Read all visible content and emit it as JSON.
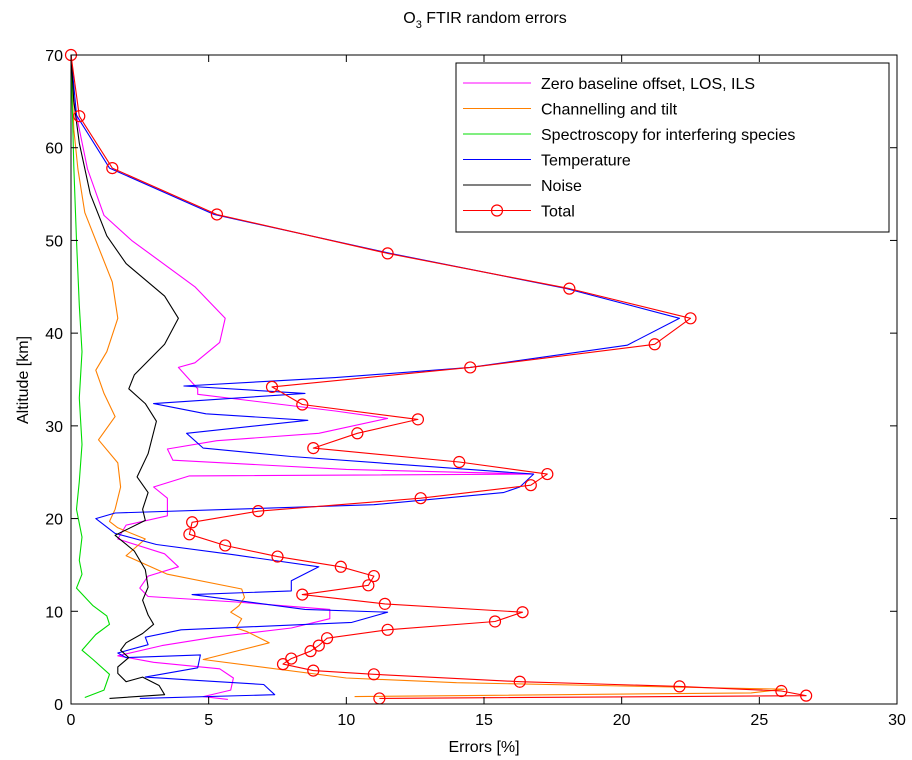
{
  "chart_data": {
    "type": "line",
    "title": "O",
    "title_subscript": "3",
    "title_rest": " FTIR random errors",
    "xlabel": "Errors [%]",
    "ylabel": "Altitude [km]",
    "xlim": [
      0,
      30
    ],
    "ylim": [
      0,
      70
    ],
    "xticks": [
      0,
      5,
      10,
      15,
      20,
      25,
      30
    ],
    "yticks": [
      0,
      10,
      20,
      30,
      40,
      50,
      60,
      70
    ],
    "grid": false,
    "legend_position": "top-right",
    "series": [
      {
        "name": "Zero baseline offset, LOS, ILS",
        "color": "#ff00ff",
        "marker": "none",
        "points": [
          [
            5.7,
            0.5
          ],
          [
            4.8,
            0.8
          ],
          [
            5.8,
            1.5
          ],
          [
            5.9,
            2.8
          ],
          [
            5.4,
            3.8
          ],
          [
            3.0,
            4.5
          ],
          [
            1.7,
            5.2
          ],
          [
            3.3,
            6.3
          ],
          [
            5.2,
            7.2
          ],
          [
            8.0,
            8.2
          ],
          [
            9.4,
            9.2
          ],
          [
            9.4,
            10.2
          ],
          [
            6.0,
            11.0
          ],
          [
            2.8,
            11.6
          ],
          [
            2.5,
            12.5
          ],
          [
            2.8,
            13.8
          ],
          [
            3.9,
            14.8
          ],
          [
            3.4,
            16.2
          ],
          [
            1.7,
            17.8
          ],
          [
            2.0,
            19.3
          ],
          [
            3.5,
            20.3
          ],
          [
            3.5,
            22.2
          ],
          [
            3.0,
            23.4
          ],
          [
            4.3,
            24.6
          ],
          [
            16.8,
            24.8
          ],
          [
            10.0,
            25.3
          ],
          [
            3.7,
            26.3
          ],
          [
            3.5,
            27.5
          ],
          [
            5.3,
            28.4
          ],
          [
            9.0,
            29.2
          ],
          [
            11.5,
            30.8
          ],
          [
            9.6,
            31.6
          ],
          [
            4.6,
            33.4
          ],
          [
            4.6,
            34.0
          ],
          [
            3.9,
            36.3
          ],
          [
            4.5,
            36.8
          ],
          [
            5.4,
            39.0
          ],
          [
            5.6,
            41.6
          ],
          [
            4.5,
            45.0
          ],
          [
            2.2,
            50.0
          ],
          [
            1.2,
            52.7
          ],
          [
            0.6,
            57.7
          ],
          [
            0.3,
            62.0
          ],
          [
            0.1,
            65.0
          ],
          [
            0.0,
            70.0
          ]
        ]
      },
      {
        "name": "Channelling and tilt",
        "color": "#ff8000",
        "marker": "none",
        "points": [
          [
            10.3,
            0.8
          ],
          [
            24.7,
            1.2
          ],
          [
            25.9,
            1.6
          ],
          [
            14.0,
            2.3
          ],
          [
            10.0,
            2.8
          ],
          [
            4.8,
            4.8
          ],
          [
            7.2,
            6.6
          ],
          [
            6.4,
            7.8
          ],
          [
            6.0,
            8.2
          ],
          [
            6.2,
            9.2
          ],
          [
            5.8,
            9.9
          ],
          [
            6.1,
            10.6
          ],
          [
            6.3,
            11.5
          ],
          [
            6.2,
            12.4
          ],
          [
            3.5,
            14.0
          ],
          [
            2.0,
            16.0
          ],
          [
            2.7,
            17.8
          ],
          [
            1.7,
            19.0
          ],
          [
            1.4,
            19.7
          ],
          [
            1.6,
            21.0
          ],
          [
            1.8,
            23.4
          ],
          [
            1.7,
            26.0
          ],
          [
            1.0,
            28.5
          ],
          [
            1.6,
            31.0
          ],
          [
            1.2,
            33.5
          ],
          [
            0.9,
            36.0
          ],
          [
            1.3,
            38.0
          ],
          [
            1.7,
            41.6
          ],
          [
            1.5,
            45.5
          ],
          [
            0.9,
            50.0
          ],
          [
            0.5,
            53.0
          ],
          [
            0.25,
            57.7
          ],
          [
            0.1,
            62.0
          ],
          [
            0.0,
            70.0
          ]
        ]
      },
      {
        "name": "Spectroscopy for interfering species",
        "color": "#00dd00",
        "marker": "none",
        "points": [
          [
            0.5,
            0.7
          ],
          [
            1.2,
            1.5
          ],
          [
            1.4,
            3.2
          ],
          [
            0.8,
            4.8
          ],
          [
            0.4,
            5.8
          ],
          [
            0.9,
            7.5
          ],
          [
            1.4,
            8.6
          ],
          [
            1.3,
            9.5
          ],
          [
            0.8,
            10.6
          ],
          [
            0.2,
            12.5
          ],
          [
            0.4,
            14.0
          ],
          [
            0.3,
            15.5
          ],
          [
            0.4,
            18.0
          ],
          [
            0.2,
            21.0
          ],
          [
            0.3,
            24.0
          ],
          [
            0.4,
            28.0
          ],
          [
            0.3,
            33.0
          ],
          [
            0.4,
            38.0
          ],
          [
            0.3,
            43.0
          ],
          [
            0.2,
            50.0
          ],
          [
            0.1,
            58.0
          ],
          [
            0.0,
            70.0
          ]
        ]
      },
      {
        "name": "Temperature",
        "color": "#0000ff",
        "marker": "none",
        "points": [
          [
            2.5,
            0.6
          ],
          [
            7.4,
            1.0
          ],
          [
            7.0,
            2.1
          ],
          [
            4.3,
            2.6
          ],
          [
            2.7,
            2.9
          ],
          [
            4.6,
            3.9
          ],
          [
            4.7,
            5.3
          ],
          [
            2.0,
            5.0
          ],
          [
            1.7,
            5.5
          ],
          [
            2.8,
            6.4
          ],
          [
            2.7,
            7.2
          ],
          [
            4.0,
            8.0
          ],
          [
            10.2,
            8.8
          ],
          [
            11.5,
            9.9
          ],
          [
            8.5,
            10.2
          ],
          [
            4.4,
            11.8
          ],
          [
            8.0,
            12.2
          ],
          [
            8.0,
            13.3
          ],
          [
            9.0,
            14.8
          ],
          [
            5.9,
            16.1
          ],
          [
            3.1,
            17.2
          ],
          [
            1.6,
            18.4
          ],
          [
            0.9,
            20.0
          ],
          [
            1.6,
            20.6
          ],
          [
            11.0,
            21.5
          ],
          [
            15.7,
            22.8
          ],
          [
            16.3,
            23.4
          ],
          [
            16.8,
            24.8
          ],
          [
            8.0,
            26.7
          ],
          [
            4.8,
            27.6
          ],
          [
            4.2,
            29.2
          ],
          [
            8.6,
            30.6
          ],
          [
            4.9,
            31.3
          ],
          [
            3.0,
            32.4
          ],
          [
            8.5,
            33.5
          ],
          [
            4.1,
            34.3
          ],
          [
            9.6,
            35.2
          ],
          [
            14.5,
            36.3
          ],
          [
            20.2,
            38.7
          ],
          [
            22.1,
            41.6
          ],
          [
            18.0,
            44.8
          ],
          [
            11.6,
            48.6
          ],
          [
            5.2,
            52.8
          ],
          [
            1.4,
            57.8
          ],
          [
            0.2,
            63.5
          ],
          [
            0.0,
            70.0
          ]
        ]
      },
      {
        "name": "Noise",
        "color": "#000000",
        "marker": "none",
        "points": [
          [
            1.4,
            0.6
          ],
          [
            3.4,
            1.0
          ],
          [
            3.2,
            2.0
          ],
          [
            2.6,
            2.9
          ],
          [
            2.0,
            2.4
          ],
          [
            1.7,
            3.3
          ],
          [
            1.7,
            4.0
          ],
          [
            2.1,
            5.0
          ],
          [
            1.8,
            5.8
          ],
          [
            2.0,
            6.6
          ],
          [
            2.6,
            7.6
          ],
          [
            3.0,
            8.6
          ],
          [
            2.8,
            9.6
          ],
          [
            2.6,
            11.2
          ],
          [
            2.8,
            12.6
          ],
          [
            2.7,
            14.5
          ],
          [
            2.3,
            16.5
          ],
          [
            1.6,
            18.2
          ],
          [
            2.7,
            19.8
          ],
          [
            2.6,
            21.0
          ],
          [
            2.8,
            22.8
          ],
          [
            2.4,
            24.5
          ],
          [
            2.8,
            27.0
          ],
          [
            3.1,
            30.5
          ],
          [
            2.7,
            32.4
          ],
          [
            2.1,
            34.0
          ],
          [
            2.3,
            35.5
          ],
          [
            3.4,
            38.8
          ],
          [
            3.9,
            41.6
          ],
          [
            3.4,
            44.0
          ],
          [
            2.0,
            47.5
          ],
          [
            1.3,
            50.5
          ],
          [
            0.7,
            55.0
          ],
          [
            0.3,
            60.5
          ],
          [
            0.1,
            65.0
          ],
          [
            0.0,
            70.0
          ]
        ]
      },
      {
        "name": "Total",
        "color": "#ff0000",
        "marker": "circle",
        "points": [
          [
            11.2,
            0.6
          ],
          [
            26.7,
            0.9
          ],
          [
            25.8,
            1.4
          ],
          [
            22.1,
            1.9
          ],
          [
            16.3,
            2.4
          ],
          [
            11.0,
            3.2
          ],
          [
            8.8,
            3.6
          ],
          [
            7.7,
            4.3
          ],
          [
            8.0,
            4.9
          ],
          [
            8.7,
            5.7
          ],
          [
            9.0,
            6.3
          ],
          [
            9.3,
            7.1
          ],
          [
            11.5,
            8.0
          ],
          [
            15.4,
            8.9
          ],
          [
            16.4,
            9.9
          ],
          [
            11.4,
            10.8
          ],
          [
            8.4,
            11.8
          ],
          [
            10.8,
            12.8
          ],
          [
            11.0,
            13.8
          ],
          [
            9.8,
            14.8
          ],
          [
            7.5,
            15.9
          ],
          [
            5.6,
            17.1
          ],
          [
            4.3,
            18.3
          ],
          [
            4.4,
            19.6
          ],
          [
            6.8,
            20.8
          ],
          [
            12.7,
            22.2
          ],
          [
            16.7,
            23.6
          ],
          [
            17.3,
            24.8
          ],
          [
            14.1,
            26.1
          ],
          [
            8.8,
            27.6
          ],
          [
            10.4,
            29.2
          ],
          [
            12.6,
            30.7
          ],
          [
            8.4,
            32.3
          ],
          [
            7.3,
            34.2
          ],
          [
            14.5,
            36.3
          ],
          [
            21.2,
            38.8
          ],
          [
            22.5,
            41.6
          ],
          [
            18.1,
            44.8
          ],
          [
            11.5,
            48.6
          ],
          [
            5.3,
            52.8
          ],
          [
            1.5,
            57.8
          ],
          [
            0.3,
            63.4
          ],
          [
            0.0,
            70.0
          ]
        ]
      }
    ]
  }
}
